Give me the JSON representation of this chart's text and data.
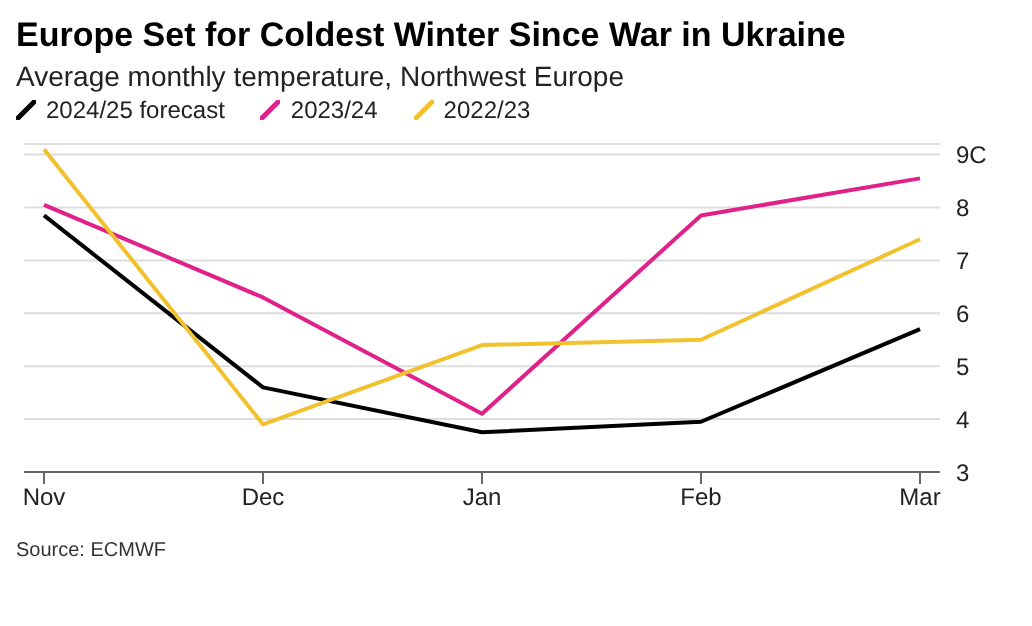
{
  "chart_data": {
    "type": "line",
    "title": "Europe Set for Coldest Winter Since War in Ukraine",
    "subtitle": "Average monthly temperature, Northwest Europe",
    "categories": [
      "Nov",
      "Dec",
      "Jan",
      "Feb",
      "Mar"
    ],
    "series": [
      {
        "name": "2024/25 forecast",
        "color": "#000000",
        "values": [
          7.85,
          4.6,
          3.75,
          3.95,
          5.7
        ]
      },
      {
        "name": "2023/24",
        "color": "#e0218a",
        "values": [
          8.05,
          6.3,
          4.1,
          7.85,
          8.55
        ]
      },
      {
        "name": "2022/23",
        "color": "#f2c12e",
        "values": [
          9.1,
          3.9,
          5.4,
          5.5,
          7.4
        ]
      }
    ],
    "ylim": [
      3,
      9.2
    ],
    "yticks": [
      3,
      4,
      5,
      6,
      7,
      8,
      {
        "value": 9,
        "label": "9C"
      }
    ],
    "grid": "y",
    "legend": "top left",
    "marker": "none",
    "line_style": "solid",
    "annotations": [
      "Source: ECMWF"
    ]
  }
}
